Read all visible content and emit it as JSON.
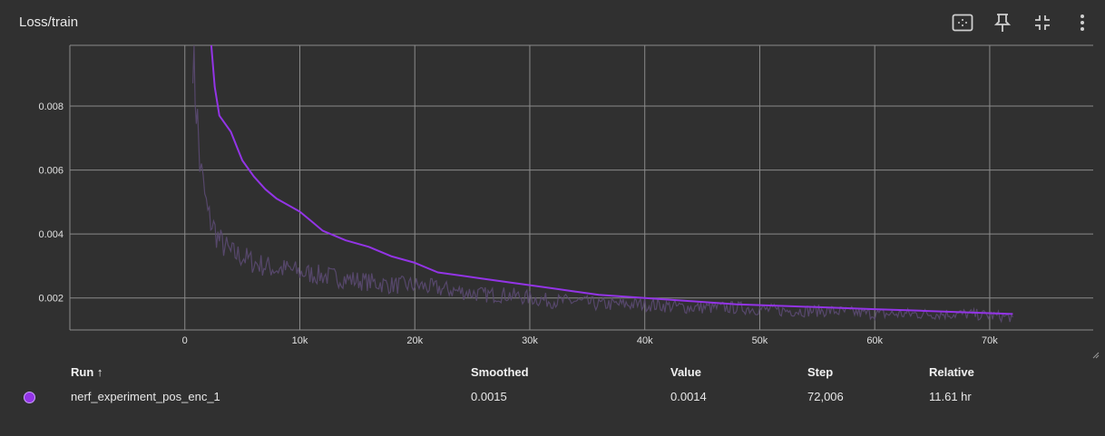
{
  "card": {
    "title": "Loss/train",
    "toolbar": [
      {
        "name": "fit-domain-icon"
      },
      {
        "name": "pin-icon"
      },
      {
        "name": "collapse-icon"
      },
      {
        "name": "more-vert-icon"
      }
    ]
  },
  "colors": {
    "background": "#303030",
    "grid": "#8a8a8a",
    "smoothed": "#9334e6",
    "raw": "#5b4a72"
  },
  "chart_data": {
    "type": "line",
    "title": "",
    "xlabel": "",
    "ylabel": "",
    "xlim": [
      -10000,
      79000
    ],
    "ylim": [
      0.001,
      0.0099
    ],
    "x_ticks": [
      0,
      10000,
      20000,
      30000,
      40000,
      50000,
      60000,
      70000
    ],
    "x_tick_labels": [
      "0",
      "10k",
      "20k",
      "30k",
      "40k",
      "50k",
      "60k",
      "70k"
    ],
    "y_ticks": [
      0.002,
      0.004,
      0.006,
      0.008
    ],
    "y_tick_labels": [
      "0.002",
      "0.004",
      "0.006",
      "0.008"
    ],
    "grid": true,
    "series": [
      {
        "role": "smoothed",
        "color": "#9334e6",
        "x": [
          2300,
          2600,
          3000,
          4000,
          5000,
          6000,
          7000,
          8000,
          10000,
          11000,
          12000,
          14000,
          16000,
          18000,
          20000,
          22000,
          24000,
          26000,
          28000,
          30000,
          32000,
          34000,
          36000,
          38000,
          40000,
          44000,
          48000,
          52000,
          56000,
          60000,
          64000,
          68000,
          72006
        ],
        "y": [
          0.0099,
          0.0086,
          0.0077,
          0.0072,
          0.0063,
          0.0058,
          0.0054,
          0.0051,
          0.0047,
          0.0044,
          0.0041,
          0.0038,
          0.0036,
          0.0033,
          0.0031,
          0.0028,
          0.0027,
          0.0026,
          0.0025,
          0.0024,
          0.0023,
          0.0022,
          0.0021,
          0.00205,
          0.002,
          0.0019,
          0.0018,
          0.00175,
          0.0017,
          0.00165,
          0.0016,
          0.00155,
          0.0015
        ]
      },
      {
        "role": "raw",
        "color": "#5b4a72",
        "x": [
          700,
          900,
          1100,
          1300,
          1600,
          2000,
          2500,
          3000,
          3500,
          4000,
          5000,
          6000,
          7000,
          8000,
          9000,
          10000,
          12000,
          14000,
          16000,
          18000,
          20000,
          22000,
          24000,
          26000,
          28000,
          30000,
          32000,
          34000,
          36000,
          38000,
          40000,
          44000,
          48000,
          52000,
          56000,
          60000,
          64000,
          68000,
          72006
        ],
        "y": [
          0.0099,
          0.0085,
          0.0075,
          0.0062,
          0.0055,
          0.0046,
          0.0042,
          0.0038,
          0.0036,
          0.0034,
          0.0033,
          0.0031,
          0.003,
          0.0029,
          0.0029,
          0.0028,
          0.0027,
          0.0026,
          0.0025,
          0.0024,
          0.0024,
          0.0023,
          0.0022,
          0.0021,
          0.0021,
          0.002,
          0.0019,
          0.0019,
          0.0018,
          0.0018,
          0.0018,
          0.0017,
          0.0017,
          0.0016,
          0.0016,
          0.0015,
          0.0015,
          0.0015,
          0.0014
        ]
      }
    ]
  },
  "table": {
    "headers": {
      "run": "Run ↑",
      "smoothed": "Smoothed",
      "value": "Value",
      "step": "Step",
      "relative": "Relative"
    },
    "rows": [
      {
        "color": "#9334e6",
        "run": "nerf_experiment_pos_enc_1",
        "smoothed": "0.0015",
        "value": "0.0014",
        "step": "72,006",
        "relative": "11.61 hr"
      }
    ]
  }
}
